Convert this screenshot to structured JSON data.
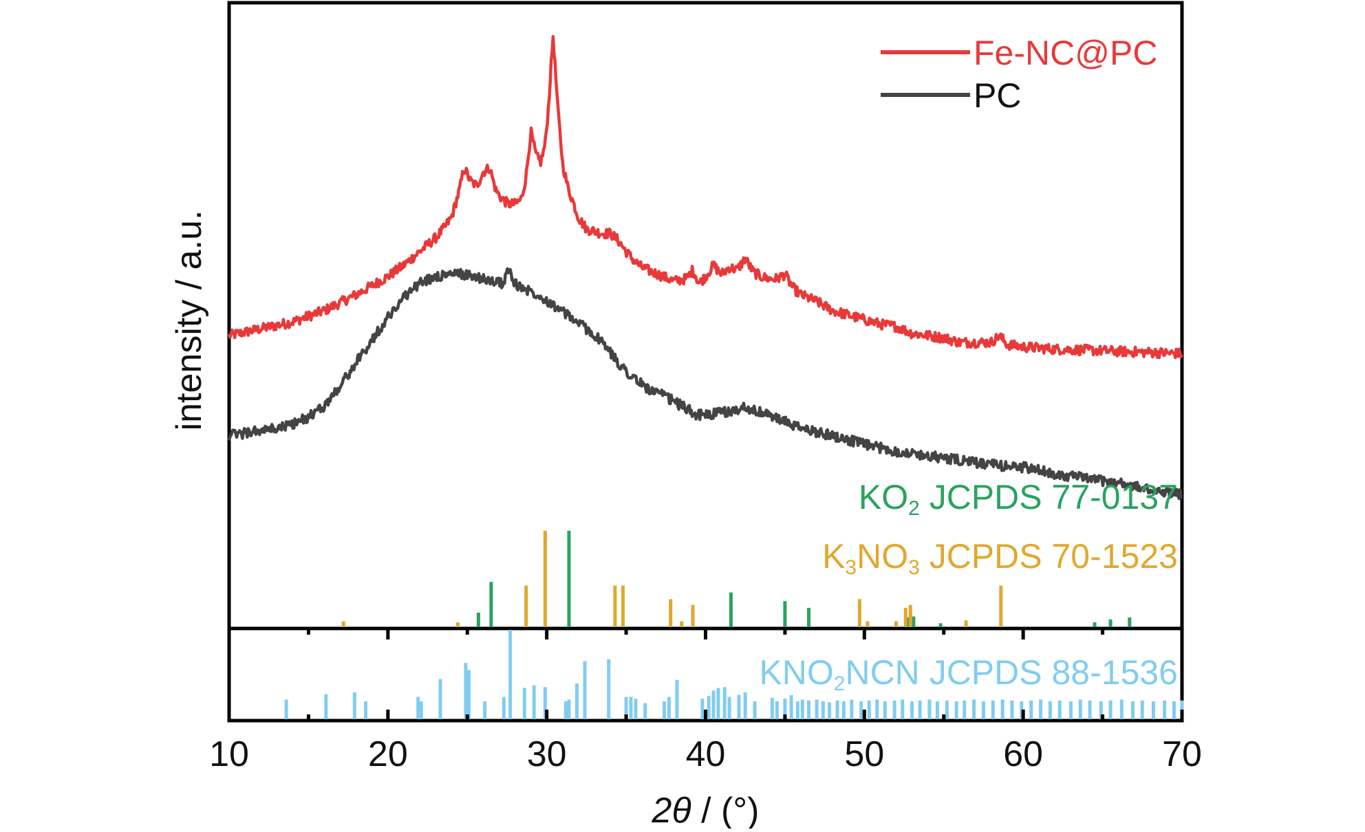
{
  "chart_data": {
    "type": "line",
    "xlabel_symbol": "2θ",
    "xlabel_unit": " / (°)",
    "ylabel": "intensity / a.u.",
    "xlim": [
      10,
      70
    ],
    "xticks": [
      10,
      20,
      30,
      40,
      50,
      60,
      70
    ],
    "grid": false,
    "legend_position": "top-right",
    "y_scale": "arbitrary units, no tick labels",
    "series": [
      {
        "name": "Fe-NC@PC",
        "color": "#e8393a",
        "x": [
          10,
          12,
          14,
          16,
          18,
          20,
          21,
          22,
          23,
          23.5,
          24,
          24.5,
          24.8,
          25.2,
          25.6,
          26,
          26.4,
          26.8,
          27.2,
          27.6,
          28,
          28.4,
          28.7,
          29,
          29.3,
          29.6,
          29.9,
          30.1,
          30.4,
          30.7,
          31,
          31.3,
          31.6,
          32,
          32.5,
          33,
          33.5,
          34,
          34.5,
          35,
          35.5,
          36,
          37,
          38,
          38.8,
          39.2,
          39.6,
          40,
          40.5,
          41,
          41.5,
          42,
          42.5,
          43,
          43.5,
          44,
          44.5,
          45,
          45.5,
          46,
          47,
          48,
          49,
          50,
          51,
          52,
          53,
          54,
          55,
          56,
          57,
          58,
          58.5,
          59,
          60,
          62,
          64,
          66,
          68,
          70
        ],
        "y": [
          20,
          21.5,
          23,
          25.5,
          29,
          33,
          35.5,
          38.5,
          41.5,
          43.5,
          46,
          52,
          57,
          54,
          53,
          56,
          57,
          52,
          50,
          49,
          49,
          50,
          55,
          65,
          60,
          58,
          62,
          70,
          86,
          70,
          58,
          53,
          50,
          46,
          43.5,
          43,
          42.5,
          42.5,
          41,
          38.5,
          36.5,
          35,
          33.5,
          32,
          32.5,
          34.5,
          31.5,
          33,
          35.5,
          33.5,
          35,
          34.5,
          37,
          34,
          33,
          32.5,
          32.5,
          33.5,
          30.5,
          29,
          27.5,
          25.5,
          24.5,
          23.5,
          22.5,
          22,
          20.5,
          20,
          19.5,
          18.5,
          18.5,
          18.5,
          20,
          18,
          17.5,
          17,
          16.8,
          16.5,
          16.3,
          16
        ]
      },
      {
        "name": "PC",
        "color": "#444444",
        "x": [
          10,
          11,
          12,
          13,
          14,
          15,
          16,
          17,
          18,
          19,
          20,
          21,
          22,
          23,
          24,
          24.8,
          25.5,
          26.5,
          27.3,
          27.6,
          27.9,
          28.5,
          29.5,
          30.5,
          31.5,
          32.5,
          33.5,
          34.5,
          35.5,
          36.5,
          37.5,
          38.5,
          39.5,
          40,
          41,
          42,
          42.5,
          43,
          43.5,
          44,
          45,
          46,
          48,
          50,
          52,
          54,
          56,
          58,
          60,
          62,
          64,
          66,
          68,
          70
        ],
        "y": [
          -2,
          -1.5,
          -1,
          -0.5,
          0.5,
          2,
          4.5,
          9,
          14,
          19,
          24,
          28.5,
          31.5,
          33,
          33.5,
          33.5,
          33,
          32,
          31.5,
          35,
          31.5,
          30.5,
          29,
          26.5,
          24,
          21.5,
          18.5,
          14,
          10.5,
          8,
          6.5,
          4.5,
          2.5,
          2.5,
          3,
          3.5,
          4.5,
          3.5,
          3,
          2.5,
          1,
          -0.5,
          -2,
          -4,
          -5.5,
          -6.5,
          -7.5,
          -8.5,
          -9,
          -10.5,
          -11.5,
          -12.5,
          -14,
          -15
        ]
      }
    ],
    "references": [
      {
        "formula_prefix": "KO",
        "formula_sub": "2",
        "formula_rest": "",
        "card": " JCPDS 77-0137",
        "color": "#2aa35f",
        "positions": [
          25.7,
          26.5,
          31.4,
          41.6,
          45,
          46.5,
          52.7,
          52.9,
          53.1,
          54.8,
          64.5,
          65.5,
          66.7
        ],
        "heights": [
          0.15,
          0.47,
          1,
          0.36,
          0.27,
          0.2,
          0.1,
          0.14,
          0.11,
          0.04,
          0.05,
          0.08,
          0.1
        ]
      },
      {
        "formula_prefix": "K",
        "formula_sub": "3",
        "formula_rest": "NO",
        "formula_sub2": "3",
        "card": " JCPDS 70-1523",
        "color": "#e0a82e",
        "positions": [
          17.2,
          24.4,
          28.7,
          29.9,
          34.3,
          34.8,
          37.8,
          38.5,
          39.2,
          49.7,
          50.2,
          52,
          52.6,
          52.9,
          56.4,
          58.6
        ],
        "heights": [
          0.06,
          0.05,
          0.43,
          1,
          0.43,
          0.43,
          0.29,
          0.06,
          0.23,
          0.29,
          0.06,
          0.06,
          0.2,
          0.23,
          0.07,
          0.43
        ]
      },
      {
        "formula_prefix": "KNO",
        "formula_sub": "2",
        "formula_rest": "NCN",
        "card": " JCPDS 88-1536",
        "color": "#80cdf0",
        "positions": [
          13.6,
          16.1,
          17.9,
          18.6,
          21.9,
          22.1,
          23.3,
          24.9,
          25.1,
          26.1,
          27.3,
          27.7,
          28.6,
          29.2,
          29.9,
          31.2,
          31.4,
          31.9,
          32.4,
          33.9,
          35,
          35.3,
          35.6,
          36.2,
          37.4,
          37.7,
          38.2,
          39.8,
          40.2,
          40.5,
          40.8,
          41.2,
          41.5,
          42.1,
          42.5,
          43.1,
          44.2,
          44.5,
          45,
          45.4,
          45.8,
          46.1,
          46.5,
          47,
          47.4,
          47.8,
          48.3,
          48.7,
          49.2,
          49.8,
          50.3,
          50.8,
          51.3,
          51.9,
          52.4,
          53,
          53.5,
          54.1,
          54.6,
          55.2,
          55.8,
          56.3,
          56.9,
          57.5,
          58.1,
          58.7,
          59.3,
          59.9,
          60.5,
          61.1,
          61.7,
          62.3,
          63,
          63.6,
          64.2,
          64.9,
          65.5,
          66.2,
          66.9,
          67.5,
          68.2,
          68.9,
          69.5,
          70
        ]
      }
    ],
    "kno2ncn_heights": [
      0.22,
      0.28,
      0.3,
      0.2,
      0.25,
      0.2,
      0.45,
      0.63,
      0.55,
      0.2,
      0.25,
      1,
      0.35,
      0.38,
      0.36,
      0.2,
      0.22,
      0.4,
      0.65,
      0.67,
      0.25,
      0.25,
      0.23,
      0.18,
      0.2,
      0.25,
      0.44,
      0.23,
      0.26,
      0.32,
      0.35,
      0.36,
      0.25,
      0.27,
      0.3,
      0.2,
      0.24,
      0.2,
      0.23,
      0.27,
      0.2,
      0.22,
      0.21,
      0.22,
      0.2,
      0.19,
      0.21,
      0.2,
      0.22,
      0.2,
      0.21,
      0.22,
      0.2,
      0.21,
      0.22,
      0.2,
      0.21,
      0.22,
      0.2,
      0.21,
      0.2,
      0.21,
      0.22,
      0.2,
      0.21,
      0.22,
      0.21,
      0.2,
      0.21,
      0.22,
      0.2,
      0.21,
      0.2,
      0.22,
      0.21,
      0.2,
      0.21,
      0.22,
      0.2,
      0.21,
      0.2,
      0.21,
      0.2,
      0.21
    ]
  }
}
